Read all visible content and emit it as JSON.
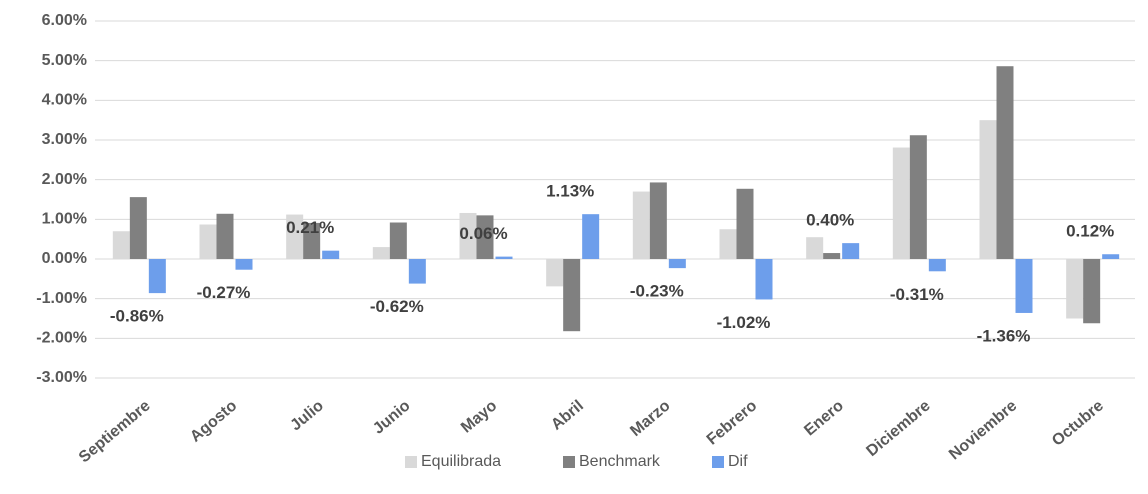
{
  "chart_data": {
    "type": "bar",
    "categories": [
      "Septiembre",
      "Agosto",
      "Julio",
      "Junio",
      "Mayo",
      "Abril",
      "Marzo",
      "Febrero",
      "Enero",
      "Diciembre",
      "Noviembre",
      "Octubre"
    ],
    "series": [
      {
        "name": "Equilibrada",
        "color": "#d9d9d9",
        "values": [
          0.7,
          0.87,
          1.12,
          0.3,
          1.16,
          -0.69,
          1.7,
          0.75,
          0.55,
          2.81,
          3.5,
          -1.5
        ]
      },
      {
        "name": "Benchmark",
        "color": "#808080",
        "values": [
          1.56,
          1.14,
          0.91,
          0.92,
          1.1,
          -1.82,
          1.93,
          1.77,
          0.15,
          3.12,
          4.86,
          -1.62
        ]
      },
      {
        "name": "Dif",
        "color": "#6d9eeb",
        "values": [
          -0.86,
          -0.27,
          0.21,
          -0.62,
          0.06,
          1.13,
          -0.23,
          -1.02,
          0.4,
          -0.31,
          -1.36,
          0.12
        ],
        "value_labels": [
          "-0.86%",
          "-0.27%",
          "0.21%",
          "-0.62%",
          "0.06%",
          "1.13%",
          "-0.23%",
          "-1.02%",
          "0.40%",
          "-0.31%",
          "-1.36%",
          "0.12%"
        ]
      }
    ],
    "ylim": [
      -3,
      6
    ],
    "yticks": [
      {
        "value": -3,
        "label": "-3.00%"
      },
      {
        "value": -2,
        "label": "-2.00%"
      },
      {
        "value": -1,
        "label": "-1.00%"
      },
      {
        "value": 0,
        "label": "0.00%"
      },
      {
        "value": 1,
        "label": "1.00%"
      },
      {
        "value": 2,
        "label": "2.00%"
      },
      {
        "value": 3,
        "label": "3.00%"
      },
      {
        "value": 4,
        "label": "4.00%"
      },
      {
        "value": 5,
        "label": "5.00%"
      },
      {
        "value": 6,
        "label": "6.00%"
      }
    ],
    "grid": true,
    "legend": "bottom"
  }
}
